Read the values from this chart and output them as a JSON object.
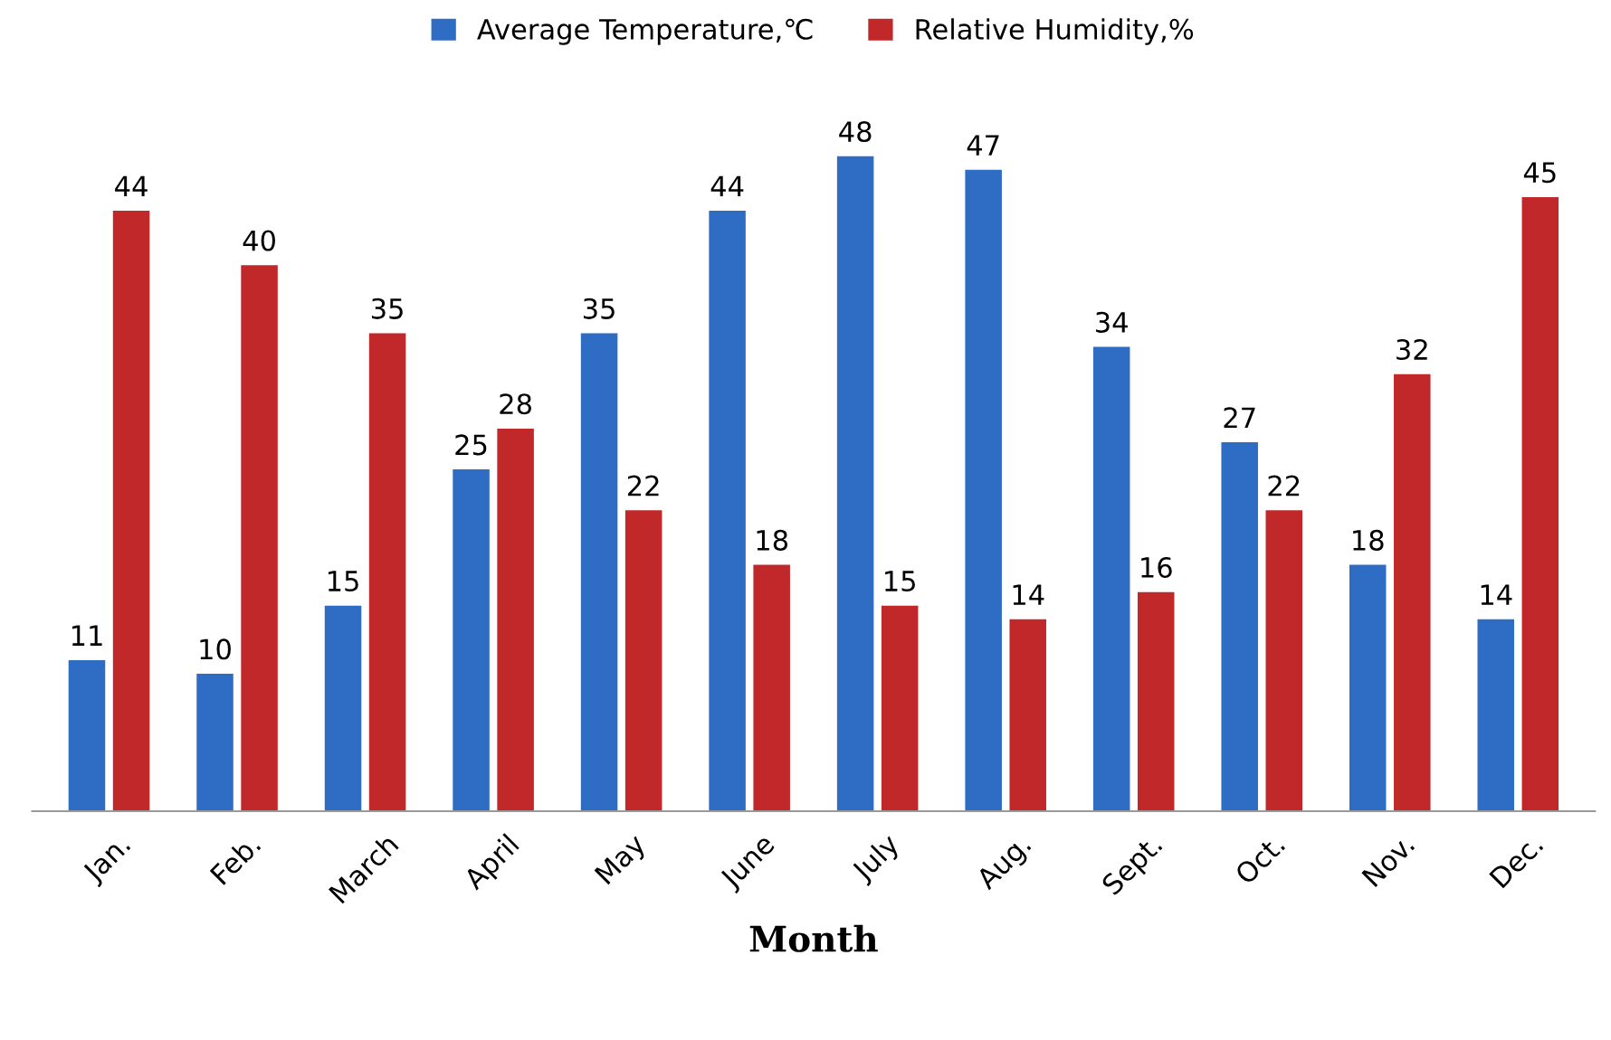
{
  "chart_data": {
    "type": "bar",
    "xlabel": "Month",
    "categories": [
      "Jan.",
      "Feb.",
      "March",
      "April",
      "May",
      "June",
      "July",
      "Aug.",
      "Sept.",
      "Oct.",
      "Nov.",
      "Dec."
    ],
    "series": [
      {
        "name": "Average Temperature,℃",
        "color": "#2f6cc4",
        "values": [
          11,
          10,
          15,
          25,
          35,
          44,
          48,
          47,
          34,
          27,
          18,
          14
        ]
      },
      {
        "name": "Relative Humidity,%",
        "color": "#c0282a",
        "values": [
          44,
          40,
          35,
          28,
          22,
          18,
          15,
          14,
          16,
          22,
          32,
          45
        ]
      }
    ],
    "data_labels": true,
    "legend": "top",
    "grid": false
  }
}
